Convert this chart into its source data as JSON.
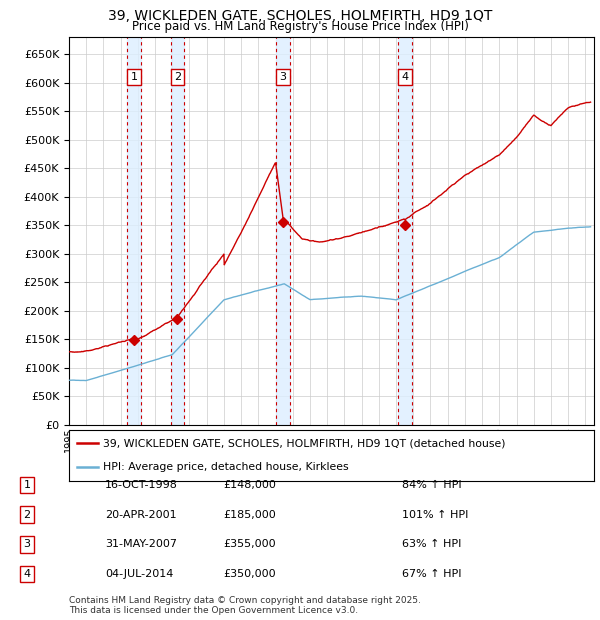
{
  "title": "39, WICKLEDEN GATE, SCHOLES, HOLMFIRTH, HD9 1QT",
  "subtitle": "Price paid vs. HM Land Registry's House Price Index (HPI)",
  "ylim": [
    0,
    680000
  ],
  "yticks": [
    0,
    50000,
    100000,
    150000,
    200000,
    250000,
    300000,
    350000,
    400000,
    450000,
    500000,
    550000,
    600000,
    650000
  ],
  "xlim_start": 1995.0,
  "xlim_end": 2025.5,
  "sale_dates": [
    1998.79,
    2001.3,
    2007.42,
    2014.5
  ],
  "sale_prices": [
    148000,
    185000,
    355000,
    350000
  ],
  "sale_labels": [
    "1",
    "2",
    "3",
    "4"
  ],
  "hpi_color": "#6ab0d4",
  "price_color": "#cc0000",
  "sale_marker_color": "#cc0000",
  "grid_color": "#cccccc",
  "vline_color": "#cc0000",
  "shade_color": "#ddeeff",
  "legend_label_price": "39, WICKLEDEN GATE, SCHOLES, HOLMFIRTH, HD9 1QT (detached house)",
  "legend_label_hpi": "HPI: Average price, detached house, Kirklees",
  "table_entries": [
    [
      "1",
      "16-OCT-1998",
      "£148,000",
      "84% ↑ HPI"
    ],
    [
      "2",
      "20-APR-2001",
      "£185,000",
      "101% ↑ HPI"
    ],
    [
      "3",
      "31-MAY-2007",
      "£355,000",
      "63% ↑ HPI"
    ],
    [
      "4",
      "04-JUL-2014",
      "£350,000",
      "67% ↑ HPI"
    ]
  ],
  "footer": "Contains HM Land Registry data © Crown copyright and database right 2025.\nThis data is licensed under the Open Government Licence v3.0."
}
